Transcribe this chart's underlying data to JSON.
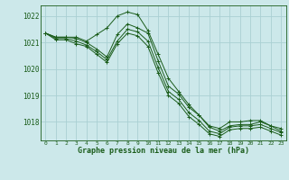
{
  "title": "Graphe pression niveau de la mer (hPa)",
  "background_color": "#cce8ea",
  "grid_color": "#aad0d3",
  "line_color": "#1a5c1a",
  "marker_color": "#1a5c1a",
  "xlim": [
    -0.5,
    23.5
  ],
  "ylim": [
    1017.3,
    1022.4
  ],
  "yticks": [
    1018,
    1019,
    1020,
    1021,
    1022
  ],
  "xticks": [
    0,
    1,
    2,
    3,
    4,
    5,
    6,
    7,
    8,
    9,
    10,
    11,
    12,
    13,
    14,
    15,
    16,
    17,
    18,
    19,
    20,
    21,
    22,
    23
  ],
  "series": [
    [
      1021.35,
      1021.2,
      1021.2,
      1021.2,
      1021.05,
      1021.3,
      1021.55,
      1022.0,
      1022.15,
      1022.05,
      1021.45,
      1020.55,
      1019.65,
      1019.15,
      1018.65,
      1018.25,
      1017.85,
      1017.75,
      1018.0,
      1018.0,
      1018.05,
      1018.05,
      1017.85,
      1017.75
    ],
    [
      1021.35,
      1021.2,
      1021.2,
      1021.15,
      1021.0,
      1020.75,
      1020.45,
      1021.3,
      1021.7,
      1021.55,
      1021.35,
      1020.3,
      1019.35,
      1019.05,
      1018.55,
      1018.25,
      1017.8,
      1017.65,
      1017.85,
      1017.9,
      1017.9,
      1018.0,
      1017.85,
      1017.65
    ],
    [
      1021.35,
      1021.15,
      1021.15,
      1021.05,
      1020.9,
      1020.65,
      1020.35,
      1021.05,
      1021.5,
      1021.4,
      1021.05,
      1020.05,
      1019.15,
      1018.85,
      1018.35,
      1018.05,
      1017.65,
      1017.55,
      1017.8,
      1017.85,
      1017.85,
      1017.9,
      1017.75,
      1017.6
    ],
    [
      1021.35,
      1021.1,
      1021.1,
      1020.95,
      1020.85,
      1020.55,
      1020.25,
      1020.95,
      1021.35,
      1021.25,
      1020.85,
      1019.85,
      1019.0,
      1018.7,
      1018.2,
      1017.9,
      1017.55,
      1017.45,
      1017.7,
      1017.75,
      1017.75,
      1017.8,
      1017.65,
      1017.5
    ]
  ]
}
